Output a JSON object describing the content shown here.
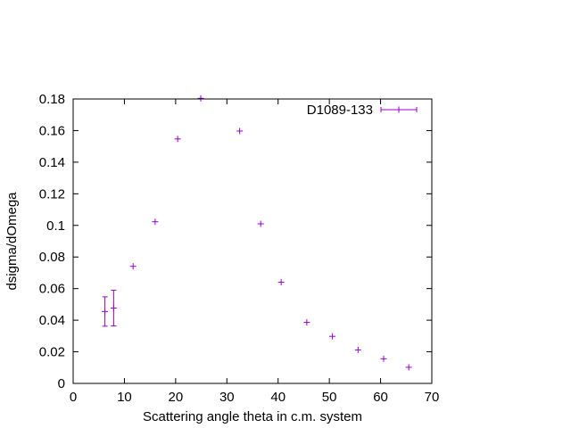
{
  "chart_data": {
    "type": "scatter",
    "xlabel": "Scattering angle theta in c.m. system",
    "ylabel": "dsigma/dOmega",
    "xlim": [
      0,
      70
    ],
    "ylim": [
      0,
      0.18
    ],
    "x_ticks": [
      0,
      10,
      20,
      30,
      40,
      50,
      60,
      70
    ],
    "x_tick_labels": [
      "0",
      "10",
      "20",
      "30",
      "40",
      "50",
      "60",
      "70"
    ],
    "y_ticks": [
      0,
      0.02,
      0.04,
      0.06,
      0.08,
      0.1,
      0.12,
      0.14,
      0.16,
      0.18
    ],
    "y_tick_labels": [
      "0",
      "0.02",
      "0.04",
      "0.06",
      "0.08",
      "0.1",
      "0.12",
      "0.14",
      "0.16",
      "0.18"
    ],
    "grid": false,
    "legend_position": "top-right",
    "series": [
      {
        "name": "D1089-133",
        "color": "#9400d3",
        "marker": "plus",
        "error_bars": "x and y",
        "points": [
          {
            "x": 6.2,
            "y": 0.0455,
            "yerr": 0.0093
          },
          {
            "x": 7.9,
            "y": 0.0477,
            "yerr": 0.0113
          },
          {
            "x": 11.7,
            "y": 0.0741
          },
          {
            "x": 16.0,
            "y": 0.1023
          },
          {
            "x": 20.4,
            "y": 0.1547
          },
          {
            "x": 24.9,
            "y": 0.1804
          },
          {
            "x": 32.5,
            "y": 0.1597
          },
          {
            "x": 36.6,
            "y": 0.101
          },
          {
            "x": 40.6,
            "y": 0.064
          },
          {
            "x": 45.6,
            "y": 0.0386
          },
          {
            "x": 50.6,
            "y": 0.0298
          },
          {
            "x": 55.6,
            "y": 0.0212
          },
          {
            "x": 60.6,
            "y": 0.0156
          },
          {
            "x": 65.5,
            "y": 0.0102
          }
        ]
      }
    ]
  }
}
